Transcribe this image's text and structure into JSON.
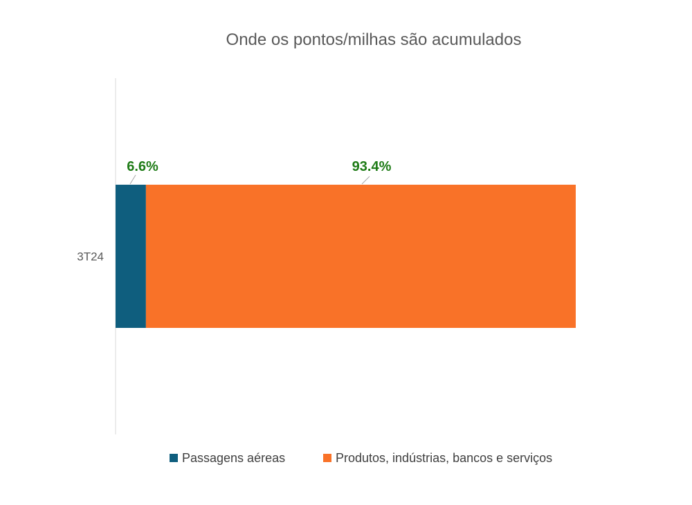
{
  "chart_data": {
    "type": "bar",
    "orientation": "horizontal",
    "stacked": "100%",
    "title": "Onde os pontos/milhas são acumulados",
    "categories": [
      "3T24"
    ],
    "series": [
      {
        "name": "Passagens aéreas",
        "values": [
          6.6
        ],
        "label": "6.6%",
        "color": "#0F5E7E"
      },
      {
        "name": "Produtos, indústrias, bancos e serviços",
        "values": [
          93.4
        ],
        "label": "93.4%",
        "color": "#F97228"
      }
    ],
    "xlim": [
      0,
      100
    ],
    "xlabel": "",
    "ylabel": "",
    "grid": false,
    "legend": "bottom",
    "label_color": "#1E7B16"
  }
}
